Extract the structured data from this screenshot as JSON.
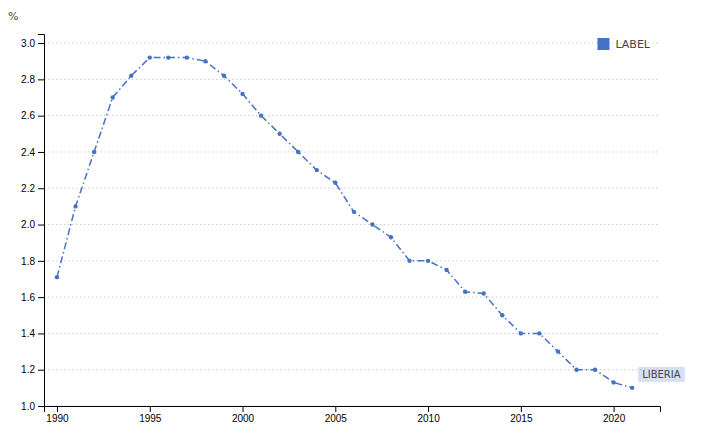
{
  "chart_data": {
    "type": "line",
    "x": [
      1990,
      1991,
      1992,
      1993,
      1994,
      1995,
      1996,
      1997,
      1998,
      1999,
      2000,
      2001,
      2002,
      2003,
      2004,
      2005,
      2006,
      2007,
      2008,
      2009,
      2010,
      2011,
      2012,
      2013,
      2014,
      2015,
      2016,
      2017,
      2018,
      2019,
      2020,
      2021
    ],
    "series": [
      {
        "name": "LABEL",
        "color": "#4472C4",
        "marker": "point",
        "line_style": "dashdot",
        "values": [
          1.71,
          2.1,
          2.4,
          2.7,
          2.82,
          2.92,
          2.92,
          2.92,
          2.9,
          2.82,
          2.72,
          2.6,
          2.5,
          2.4,
          2.3,
          2.23,
          2.07,
          2.0,
          1.93,
          1.8,
          1.8,
          1.75,
          1.63,
          1.62,
          1.5,
          1.4,
          1.4,
          1.3,
          1.2,
          1.2,
          1.13,
          1.1
        ]
      }
    ],
    "xlim": [
      1989.3,
      2022.5
    ],
    "xticks": [
      1990,
      1995,
      2000,
      2005,
      2010,
      2015,
      2020
    ],
    "ylim": [
      1.0,
      3.05
    ],
    "yticks": [
      {
        "value": 1.0,
        "label": "1.0"
      },
      1.2,
      1.4,
      1.6,
      1.8,
      {
        "value": 2.0,
        "label": "2.0"
      },
      2.2,
      2.4,
      2.6,
      2.8,
      {
        "value": 3.0,
        "label": "3.0"
      }
    ],
    "ylabel": "%",
    "annotations": [
      "LIBERIA"
    ],
    "grid": true,
    "legend": "upper right"
  }
}
